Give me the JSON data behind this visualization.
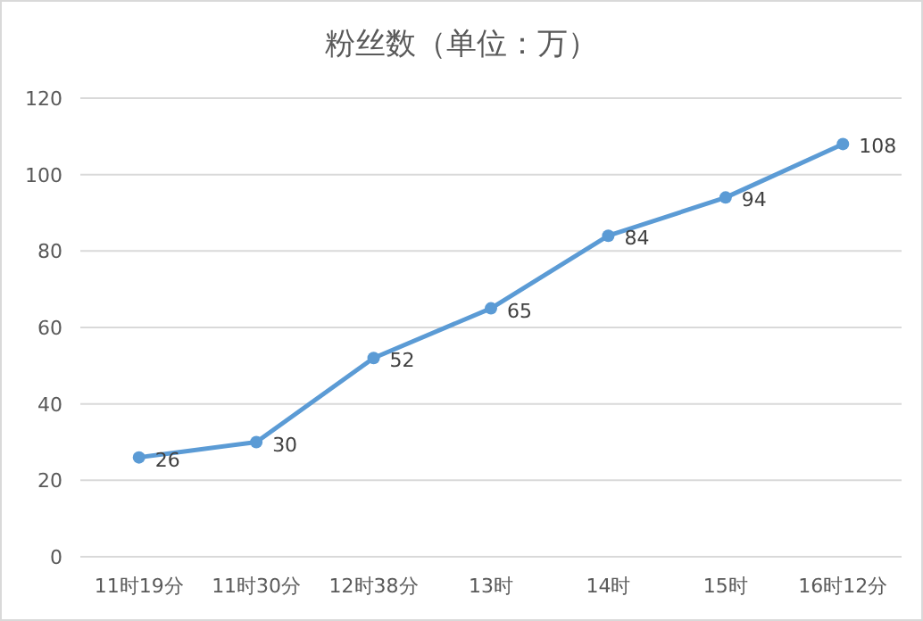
{
  "chart_data": {
    "type": "line",
    "title": "粉丝数（单位：万）",
    "categories": [
      "11时19分",
      "11时30分",
      "12时38分",
      "13时",
      "14时",
      "15时",
      "16时12分"
    ],
    "series": [
      {
        "color": "#5b9bd5",
        "values": [
          26,
          30,
          52,
          65,
          84,
          94,
          108
        ]
      }
    ],
    "ylim": [
      0,
      120
    ],
    "yticks": [
      0,
      20,
      40,
      60,
      80,
      100,
      120
    ],
    "grid": "y",
    "marker": "circle",
    "data_labels": true
  }
}
